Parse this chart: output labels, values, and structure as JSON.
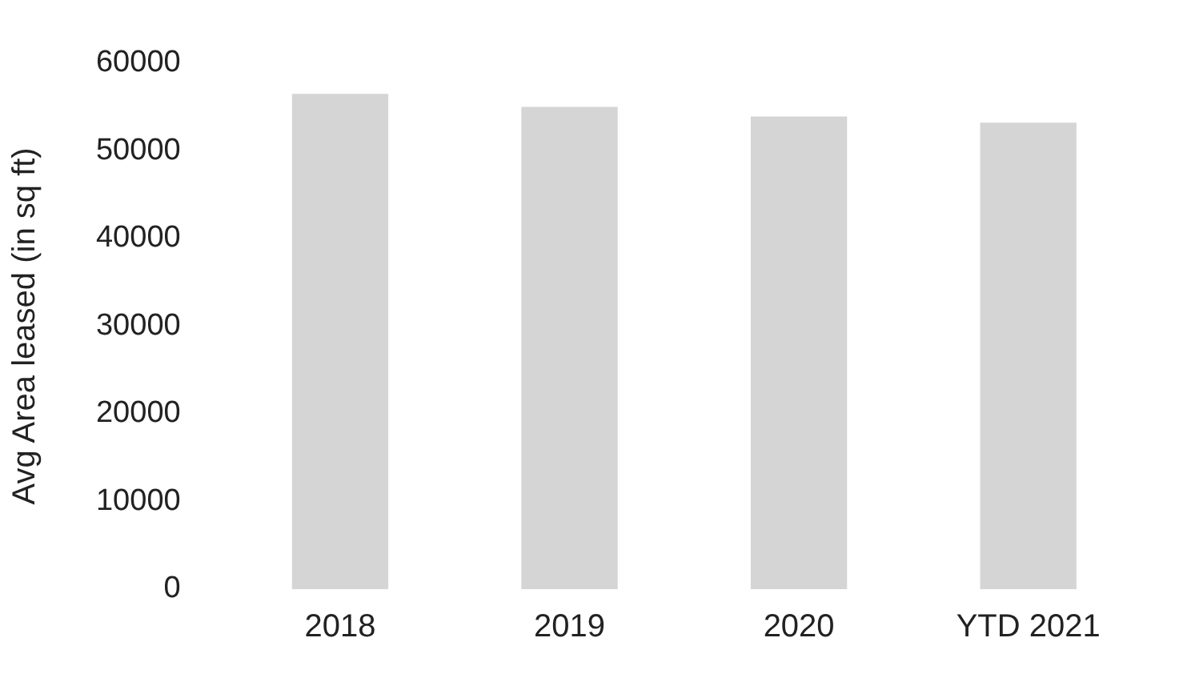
{
  "chart_data": {
    "type": "bar",
    "ylabel": "Avg Area leased (in sq ft)",
    "categories": [
      "2018",
      "2019",
      "2020",
      "YTD 2021"
    ],
    "values": [
      56500,
      55000,
      53900,
      53200
    ],
    "color": "#d4d5d4",
    "ylim": [
      0,
      60000
    ],
    "yticks": [
      0,
      10000,
      20000,
      30000,
      40000,
      50000,
      60000
    ],
    "grid": false,
    "legend": false
  }
}
